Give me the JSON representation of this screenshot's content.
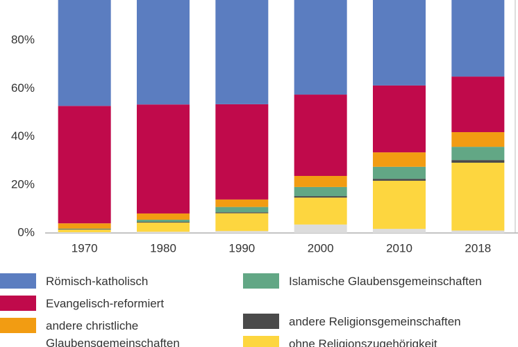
{
  "chart_data": {
    "type": "stacked-bar",
    "categories": [
      "1970",
      "1980",
      "1990",
      "2000",
      "2010",
      "2018"
    ],
    "ylim": [
      0,
      100
    ],
    "yticks": [
      {
        "value": 0,
        "label": "0%"
      },
      {
        "value": 20,
        "label": "20%"
      },
      {
        "value": 40,
        "label": "40%"
      },
      {
        "value": 60,
        "label": "60%"
      },
      {
        "value": 80,
        "label": "80%"
      }
    ],
    "grid": false,
    "series": [
      {
        "name": "Römisch-katholisch",
        "color": "#5b7dc0",
        "values": [
          47.2,
          46.6,
          46.5,
          42.5,
          38.7,
          35.0
        ]
      },
      {
        "name": "Evangelisch-reformiert",
        "color": "#c00a4b",
        "values": [
          48.8,
          45.3,
          39.6,
          33.8,
          27.8,
          23.1
        ]
      },
      {
        "name": "andere christliche Glaubensgemeinschaften",
        "color": "#f29c12",
        "values": [
          2.2,
          2.6,
          3.1,
          4.6,
          6.0,
          6.1
        ]
      },
      {
        "name": "Islamische Glaubens­gemeinschaften",
        "color": "#62a785",
        "values": [
          0.2,
          0.9,
          2.2,
          3.8,
          5.0,
          5.5
        ]
      },
      {
        "name": "andere Religionsgemeinschaften",
        "color": "#4a4a4a",
        "values": [
          0.2,
          0.3,
          0.4,
          0.6,
          0.8,
          1.1
        ]
      },
      {
        "name": "ohne Religionszugehörigkeit",
        "color": "#fdd63f",
        "values": [
          1.1,
          3.8,
          7.4,
          11.2,
          20.0,
          28.2
        ]
      },
      {
        "name": null,
        "color": "#dcdcdc",
        "values": [
          0.3,
          0.5,
          0.8,
          3.5,
          1.7,
          1.0
        ]
      }
    ]
  }
}
